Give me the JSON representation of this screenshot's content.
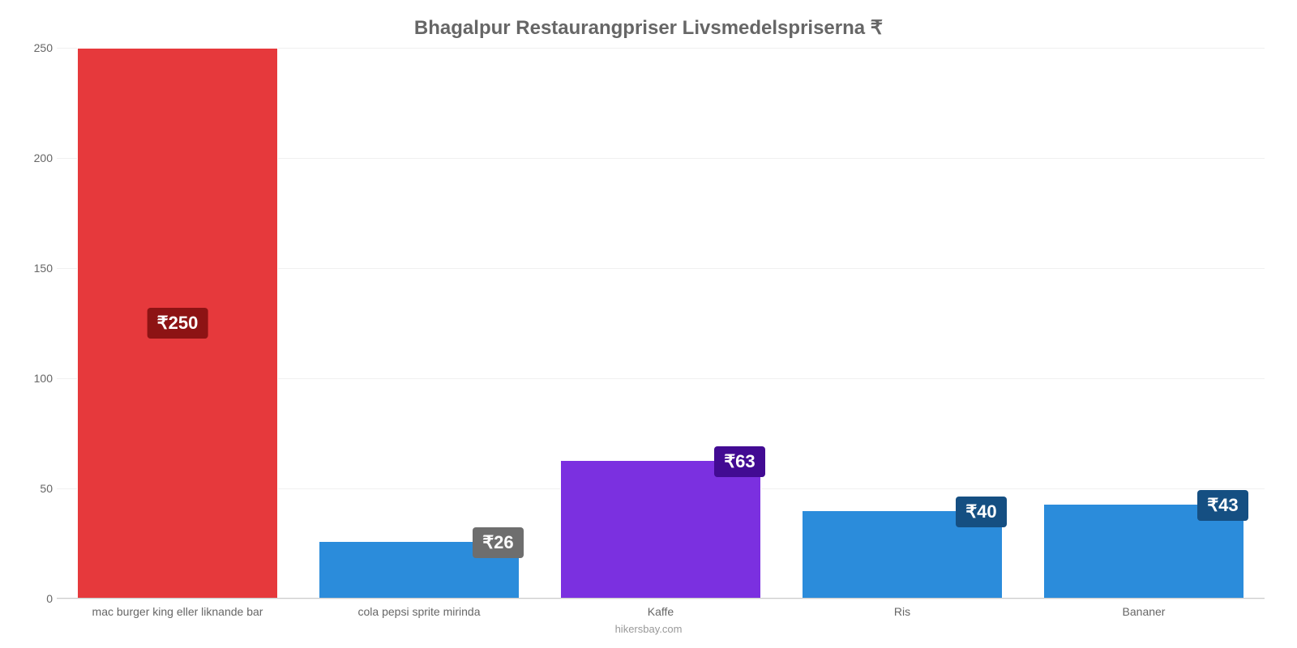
{
  "chart": {
    "type": "bar",
    "title": "Bhagalpur Restaurangpriser Livsmedelspriserna ₹",
    "title_fontsize": 24,
    "title_color": "#666666",
    "footer": "hikersbay.com",
    "footer_color": "#999999",
    "background_color": "#ffffff",
    "grid_color": "#f0f0f0",
    "baseline_color": "#cccccc",
    "axis_label_color": "#666666",
    "axis_label_fontsize": 14,
    "ymin": 0,
    "ymax": 250,
    "ytick_step": 50,
    "yticks": [
      0,
      50,
      100,
      150,
      200,
      250
    ],
    "bar_width_pct": 83,
    "value_label_fontsize": 22,
    "currency_symbol": "₹",
    "categories": [
      "mac burger king eller liknande bar",
      "cola pepsi sprite mirinda",
      "Kaffe",
      "Ris",
      "Bananer"
    ],
    "values": [
      250,
      26,
      63,
      40,
      43
    ],
    "value_labels": [
      "₹250",
      "₹26",
      "₹63",
      "₹40",
      "₹43"
    ],
    "bar_colors": [
      "#e6393c",
      "#2b8cdb",
      "#7b30e0",
      "#2b8cdb",
      "#2b8cdb"
    ],
    "badge_colors": [
      "#8d1314",
      "#6e6e6e",
      "#420b93",
      "#154f82",
      "#154f82"
    ],
    "badge_place": [
      "mid",
      "top",
      "top",
      "top",
      "top"
    ]
  }
}
